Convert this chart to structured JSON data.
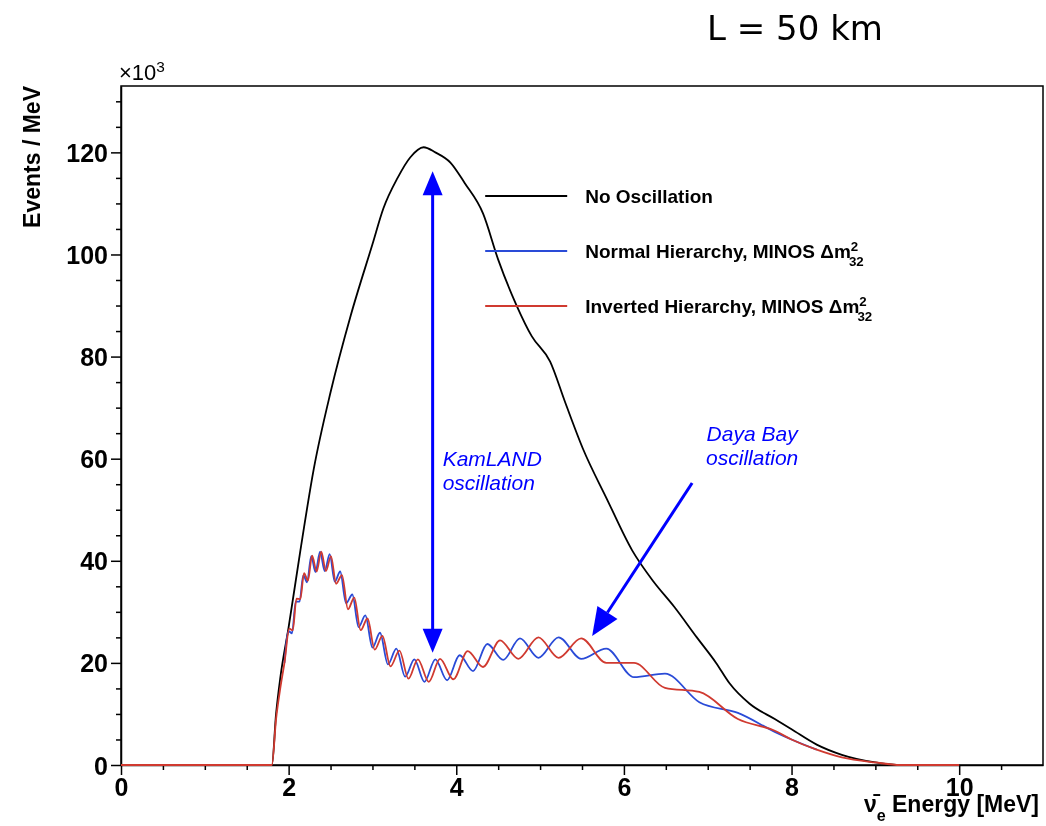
{
  "chart_data": {
    "type": "line",
    "title": "L = 50 km",
    "xlabel": "ν̄$_{e}$ Energy [MeV]",
    "ylabel": "Events / MeV",
    "annotations": [
      "×10$^{3}$",
      "KamLAND oscillation",
      "Daya Bay oscillation"
    ],
    "xlim": [
      0,
      11
    ],
    "ylim": [
      0,
      133
    ],
    "xticks": [
      0,
      {
        "value": 0.5,
        "label": null
      },
      {
        "value": 1,
        "label": null
      },
      {
        "value": 1.5,
        "label": null
      },
      2,
      {
        "value": 2.5,
        "label": null
      },
      {
        "value": 3,
        "label": null
      },
      {
        "value": 3.5,
        "label": null
      },
      4,
      {
        "value": 4.5,
        "label": null
      },
      {
        "value": 5,
        "label": null
      },
      {
        "value": 5.5,
        "label": null
      },
      6,
      {
        "value": 6.5,
        "label": null
      },
      {
        "value": 7,
        "label": null
      },
      {
        "value": 7.5,
        "label": null
      },
      8,
      {
        "value": 8.5,
        "label": null
      },
      {
        "value": 9,
        "label": null
      },
      {
        "value": 9.5,
        "label": null
      },
      10,
      {
        "value": 10.5,
        "label": null
      }
    ],
    "yticks": [
      0,
      {
        "value": 5,
        "label": null
      },
      {
        "value": 10,
        "label": null
      },
      {
        "value": 15,
        "label": null
      },
      20,
      {
        "value": 25,
        "label": null
      },
      {
        "value": 30,
        "label": null
      },
      {
        "value": 35,
        "label": null
      },
      40,
      {
        "value": 45,
        "label": null
      },
      {
        "value": 50,
        "label": null
      },
      {
        "value": 55,
        "label": null
      },
      60,
      {
        "value": 65,
        "label": null
      },
      {
        "value": 70,
        "label": null
      },
      {
        "value": 75,
        "label": null
      },
      80,
      {
        "value": 85,
        "label": null
      },
      {
        "value": 90,
        "label": null
      },
      {
        "value": 95,
        "label": null
      },
      100,
      {
        "value": 105,
        "label": null
      },
      {
        "value": 110,
        "label": null
      },
      {
        "value": 115,
        "label": null
      },
      120,
      {
        "value": 125,
        "label": null
      },
      {
        "value": 130,
        "label": null
      }
    ],
    "grid": false,
    "legend": "top right",
    "marker": "none",
    "line_style": "solid",
    "series": [
      {
        "name": "No Oscillation",
        "color": "#000000",
        "x": [
          0,
          1.8,
          1.85,
          1.9,
          2.0,
          2.14,
          2.3,
          2.5,
          2.74,
          3.0,
          3.13,
          3.3,
          3.45,
          3.61,
          3.75,
          3.93,
          4.1,
          4.32,
          4.5,
          4.72,
          4.9,
          5.12,
          5.3,
          5.51,
          5.8,
          6.1,
          6.35,
          6.6,
          6.87,
          7.1,
          7.26,
          7.5,
          7.8,
          8.0,
          8.3,
          8.6,
          9.0,
          9.3,
          10
        ],
        "values": [
          0,
          0,
          10,
          17,
          27,
          42,
          58,
          73,
          88,
          102,
          109,
          115,
          119,
          121,
          120,
          118,
          114,
          108,
          99,
          90,
          84,
          79,
          71,
          62,
          52,
          42,
          36,
          31,
          25,
          20,
          16,
          12,
          9,
          7,
          4,
          2,
          0.5,
          0,
          0
        ]
      },
      {
        "name": "Normal Hierarchy, MINOS Δm$^{2}$$_{32}$",
        "color": "#2a4bd7",
        "x": [
          1.95,
          2.0,
          2.04,
          2.085,
          2.13,
          2.175,
          2.22,
          2.27,
          2.32,
          2.375,
          2.43,
          2.49,
          2.55,
          2.615,
          2.685,
          2.76,
          2.835,
          2.915,
          3.0,
          3.09,
          3.185,
          3.285,
          3.39,
          3.5,
          3.62,
          3.75,
          3.89,
          4.04,
          4.2,
          4.37,
          4.56,
          4.76,
          4.98,
          5.22,
          5.49,
          5.79,
          6.12,
          6.49,
          6.9,
          7.36,
          7.8,
          8.0,
          8.3
        ],
        "values": [
          20,
          26.2,
          25.8,
          32,
          32,
          37.2,
          35.8,
          40.9,
          37.8,
          41.8,
          38,
          41.3,
          35.9,
          37.9,
          31.7,
          33.4,
          27,
          29.3,
          23,
          25.9,
          19.7,
          22.8,
          17.3,
          20.7,
          16.3,
          20.7,
          16.6,
          21.5,
          18.4,
          23.7,
          20.6,
          24.8,
          21,
          25,
          20.8,
          22.8,
          17.2,
          17.9,
          12.3,
          10.2,
          6.5,
          5,
          3
        ]
      },
      {
        "name": "Inverted Hierarchy, MINOS Δm$^{2}$$_{32}$",
        "color": "#d03a30",
        "x": [
          0,
          1.8,
          1.85,
          1.9,
          1.95,
          2.008,
          2.049,
          2.094,
          2.139,
          2.184,
          2.23,
          2.28,
          2.334,
          2.389,
          2.445,
          2.505,
          2.566,
          2.636,
          2.708,
          2.783,
          2.859,
          2.941,
          3.027,
          3.119,
          3.215,
          3.322,
          3.429,
          3.542,
          3.672,
          3.806,
          3.965,
          4.136,
          4.319,
          4.522,
          4.74,
          4.98,
          5.22,
          5.49,
          5.79,
          6.12,
          6.49,
          6.9,
          7.36,
          7.8,
          8.0,
          8.3,
          8.6,
          9.0,
          9.3,
          10
        ],
        "values": [
          0,
          0,
          9,
          15,
          20,
          26.7,
          26.4,
          32.6,
          32.5,
          37.6,
          36.1,
          41,
          37.9,
          41.8,
          38,
          40.9,
          35.5,
          37.2,
          30.5,
          32.8,
          26.4,
          28.7,
          22.6,
          25.3,
          19.3,
          22.4,
          16.9,
          20.7,
          16.3,
          20.8,
          16.8,
          22.3,
          19.2,
          24.4,
          20.8,
          25,
          21,
          24.8,
          20,
          20,
          15.1,
          14.3,
          9,
          6.7,
          5,
          3,
          1.5,
          0.5,
          0,
          0
        ]
      }
    ]
  }
}
